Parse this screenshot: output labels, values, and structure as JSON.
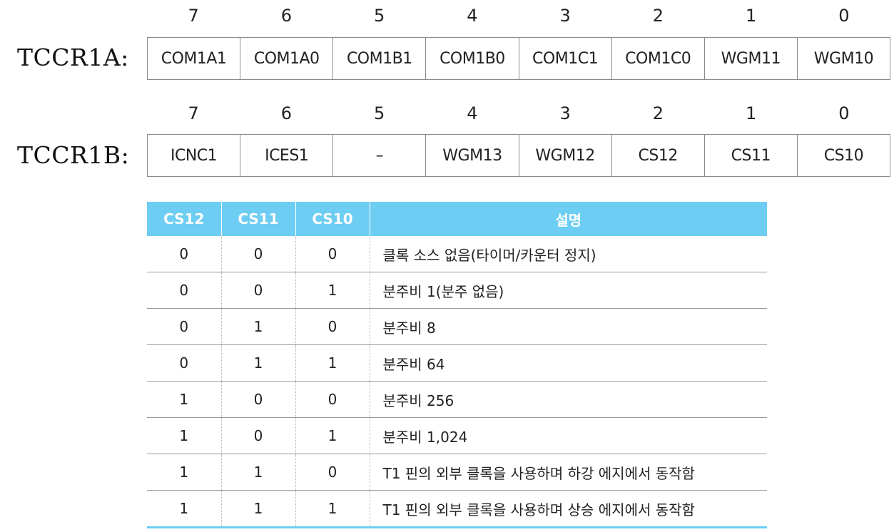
{
  "registers": [
    {
      "name": "TCCR1A:",
      "bit_numbers": [
        "7",
        "6",
        "5",
        "4",
        "3",
        "2",
        "1",
        "0"
      ],
      "bits": [
        "COM1A1",
        "COM1A0",
        "COM1B1",
        "COM1B0",
        "COM1C1",
        "COM1C0",
        "WGM11",
        "WGM10"
      ]
    },
    {
      "name": "TCCR1B:",
      "bit_numbers": [
        "7",
        "6",
        "5",
        "4",
        "3",
        "2",
        "1",
        "0"
      ],
      "bits": [
        "ICNC1",
        "ICES1",
        "–",
        "WGM13",
        "WGM12",
        "CS12",
        "CS11",
        "CS10"
      ]
    }
  ],
  "cs_table": {
    "headers": [
      "CS12",
      "CS11",
      "CS10",
      "설명"
    ],
    "rows": [
      [
        "0",
        "0",
        "0",
        "클록 소스 없음(타이머/카운터 정지)"
      ],
      [
        "0",
        "0",
        "1",
        "분주비 1(분주 없음)"
      ],
      [
        "0",
        "1",
        "0",
        "분주비 8"
      ],
      [
        "0",
        "1",
        "1",
        "분주비 64"
      ],
      [
        "1",
        "0",
        "0",
        "분주비 256"
      ],
      [
        "1",
        "0",
        "1",
        "분주비 1,024"
      ],
      [
        "1",
        "1",
        "0",
        "T1 핀의 외부 클록을 사용하며 하강 에지에서 동작함"
      ],
      [
        "1",
        "1",
        "1",
        "T1 핀의 외부 클록을 사용하며 상승 에지에서 동작함"
      ]
    ]
  },
  "colors": {
    "header_bg": "#6dcdf2",
    "header_text": "#ffffff",
    "border": "#8a8a8a"
  }
}
